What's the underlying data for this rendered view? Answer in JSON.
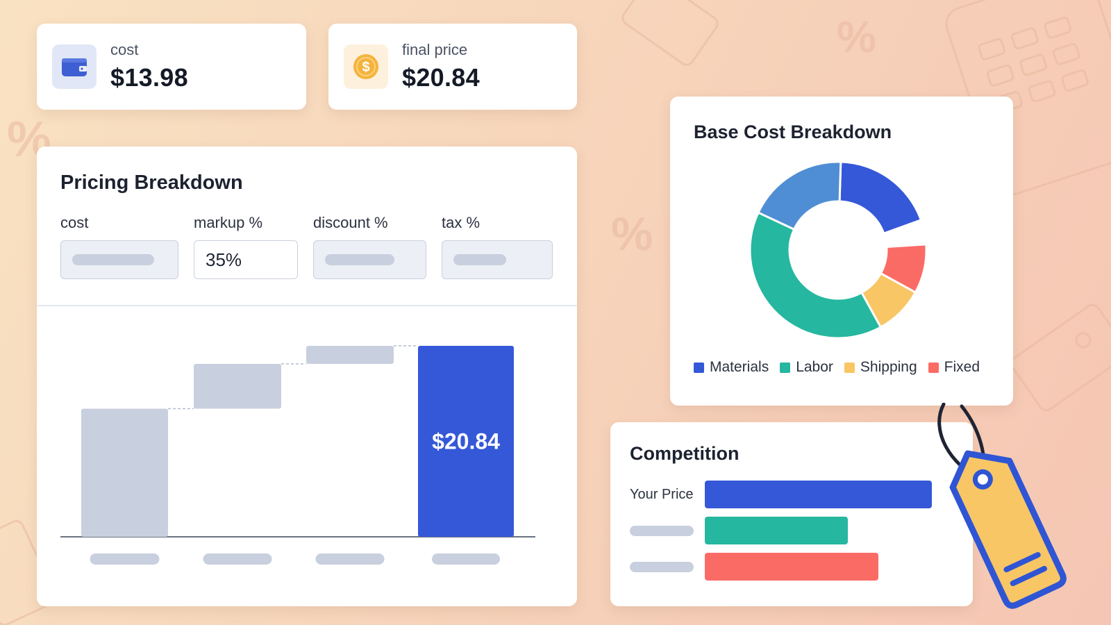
{
  "stats": {
    "cost": {
      "label": "cost",
      "value": "$13.98",
      "icon": "wallet-icon"
    },
    "final_price": {
      "label": "final price",
      "value": "$20.84",
      "icon": "dollar-coin-icon"
    }
  },
  "pricing": {
    "title": "Pricing Breakdown",
    "fields": {
      "cost": {
        "label": "cost",
        "value": ""
      },
      "markup": {
        "label": "markup %",
        "value": "35%"
      },
      "discount": {
        "label": "discount %",
        "value": ""
      },
      "tax": {
        "label": "tax %",
        "value": ""
      }
    },
    "final_bar_label": "$20.84"
  },
  "base_cost": {
    "title": "Base Cost Breakdown",
    "legend": [
      {
        "label": "Materials",
        "color": "#3558d8"
      },
      {
        "label": "Labor",
        "color": "#25b79f"
      },
      {
        "label": "Shipping",
        "color": "#f8c665"
      },
      {
        "label": "Fixed",
        "color": "#fb6b66"
      }
    ]
  },
  "competition": {
    "title": "Competition",
    "rows": [
      {
        "label": "Your Price",
        "fraction": 1.0,
        "color": "#3558d8"
      },
      {
        "label": "",
        "fraction": 0.63,
        "color": "#25b79f"
      },
      {
        "label": "",
        "fraction": 0.765,
        "color": "#fb6b66"
      }
    ]
  },
  "chart_data": [
    {
      "type": "bar",
      "values": [
        13.98,
        18.87,
        20.84,
        20.84
      ],
      "data_labels": [
        "",
        "",
        "",
        "$20.84"
      ],
      "ylim": [
        0,
        20.84
      ]
    },
    {
      "type": "pie",
      "labels": [
        "Materials",
        "",
        "Fixed",
        "Shipping",
        "Labor",
        ""
      ],
      "values": [
        19,
        4.5,
        9,
        9,
        40,
        18.5
      ],
      "colors": [
        "#3558d8",
        "#ffffff",
        "#fb6b66",
        "#f8c665",
        "#25b79f",
        "#4f8ed4"
      ]
    }
  ]
}
